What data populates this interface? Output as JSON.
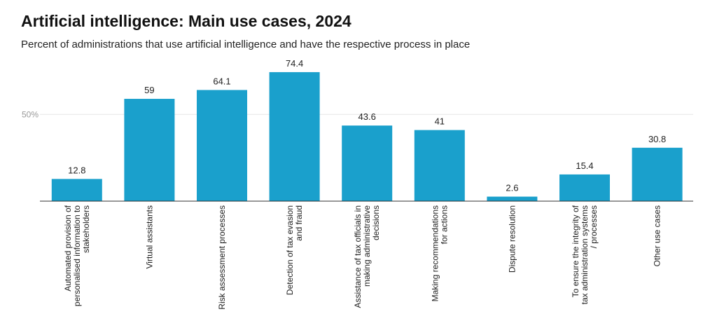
{
  "header": {
    "title": "Artificial intelligence: Main use cases, 2024",
    "subtitle": "Percent of administrations that use artificial intelligence and have the respective process in place"
  },
  "colors": {
    "bar": "#1aa0cc",
    "grid": "#e6e6e6",
    "axis": "#333333"
  },
  "chart_data": {
    "type": "bar",
    "title": "Artificial intelligence: Main use cases, 2024",
    "subtitle": "Percent of administrations that use artificial intelligence and have the respective process in place",
    "xlabel": "",
    "ylabel": "",
    "ylim": [
      0,
      75
    ],
    "yticks": [
      {
        "value": 50,
        "label": "50%"
      }
    ],
    "grid": true,
    "legend": "none",
    "categories": [
      [
        "Automated provision of",
        "personalised information to",
        "stakeholders"
      ],
      [
        "Virtual assistants"
      ],
      [
        "Risk assessment processes"
      ],
      [
        "Detection of tax evasion",
        "and fraud"
      ],
      [
        "Assistance of tax officials in",
        "making administrative",
        "decisions"
      ],
      [
        "Making recommendations",
        "for actions"
      ],
      [
        "Dispute resolution"
      ],
      [
        "To ensure the integrity of",
        "tax administration systems",
        "/ processes"
      ],
      [
        "Other use cases"
      ]
    ],
    "values": [
      12.8,
      59,
      64.1,
      74.4,
      43.6,
      41,
      2.6,
      15.4,
      30.8
    ],
    "value_labels": [
      "12.8",
      "59",
      "64.1",
      "74.4",
      "43.6",
      "41",
      "2.6",
      "15.4",
      "30.8"
    ]
  }
}
